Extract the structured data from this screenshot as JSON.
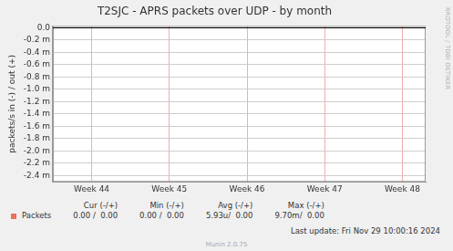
{
  "chart_data": {
    "type": "line",
    "title": "T2SJC - APRS packets over UDP - by month",
    "y_label": "packets/s in (-) / out (+)",
    "x": [
      43.5,
      44,
      45,
      46,
      47,
      48,
      48.3
    ],
    "series": [
      {
        "name": "Packets",
        "color": "#e8735a",
        "values": [
          0,
          0,
          0,
          0,
          0,
          0,
          0
        ]
      }
    ],
    "xlim": [
      43.5,
      48.3
    ],
    "xticks": [
      {
        "value": 44,
        "label": "Week 44"
      },
      {
        "value": 45,
        "label": "Week 45"
      },
      {
        "value": 46,
        "label": "Week 46"
      },
      {
        "value": 47,
        "label": "Week 47"
      },
      {
        "value": 48,
        "label": "Week 48"
      }
    ],
    "ylim": [
      -0.0025,
      3e-05
    ],
    "yticks": [
      {
        "value": 0,
        "label": "0.0"
      },
      {
        "value": -0.0002,
        "label": "-0.2 m"
      },
      {
        "value": -0.0004,
        "label": "-0.4 m"
      },
      {
        "value": -0.0006,
        "label": "-0.6 m"
      },
      {
        "value": -0.0008,
        "label": "-0.8 m"
      },
      {
        "value": -0.001,
        "label": "-1.0 m"
      },
      {
        "value": -0.0012,
        "label": "-1.2 m"
      },
      {
        "value": -0.0014,
        "label": "-1.4 m"
      },
      {
        "value": -0.0016,
        "label": "-1.6 m"
      },
      {
        "value": -0.0018,
        "label": "-1.8 m"
      },
      {
        "value": -0.002,
        "label": "-2.0 m"
      },
      {
        "value": -0.0022,
        "label": "-2.2 m"
      },
      {
        "value": -0.0024,
        "label": "-2.4 m"
      }
    ],
    "grid": true,
    "legend_table": {
      "headers": [
        "Cur (-/+)",
        "Min (-/+)",
        "Avg (-/+)",
        "Max (-/+)"
      ],
      "rows": [
        [
          "0.00 /  0.00",
          "0.00 /  0.00",
          "5.93u/  0.00",
          "9.70m/  0.00"
        ]
      ]
    },
    "last_update": "Last update: Fri Nov 29 10:00:16 2024",
    "version": "Munin 2.0.75",
    "side_text": "RRDTOOL / TOBI OETIKER"
  }
}
